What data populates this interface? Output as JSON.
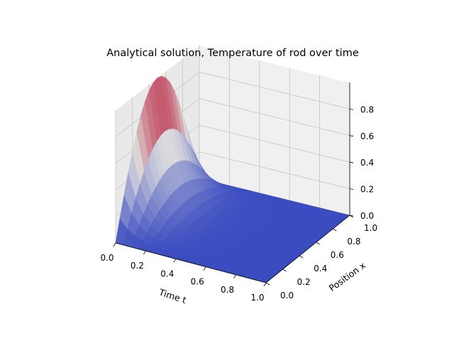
{
  "chart_data": {
    "type": "surface3d",
    "title": "Analytical solution, Temperature of rod over time",
    "xlabel": "Time t",
    "ylabel": "Position x",
    "zlabel": "",
    "xlim": [
      0,
      1
    ],
    "ylim": [
      0,
      1
    ],
    "zlim": [
      0,
      1
    ],
    "xticks": [
      "0.0",
      "0.2",
      "0.4",
      "0.6",
      "0.8",
      "1.0"
    ],
    "yticks": [
      "0.0",
      "0.2",
      "0.4",
      "0.6",
      "0.8",
      "1.0"
    ],
    "zticks": [
      "0.0",
      "0.2",
      "0.4",
      "0.6",
      "0.8"
    ],
    "function": "u(t, x) = exp(-pi^2 t) * sin(pi x)",
    "t_samples": [
      0.0,
      0.1,
      0.2,
      0.3,
      0.4,
      0.5,
      0.6,
      0.7,
      0.8,
      0.9,
      1.0
    ],
    "x_samples": [
      0.0,
      0.1,
      0.2,
      0.3,
      0.4,
      0.5,
      0.6,
      0.7,
      0.8,
      0.9,
      1.0
    ],
    "peak": {
      "t": 0.0,
      "x": 0.5,
      "value": 1.0
    },
    "colormap": "coolwarm",
    "colormap_low": "#3b4cc0",
    "colormap_mid": "#dddddd",
    "colormap_high": "#b40426",
    "grid": true,
    "pane_color": "#f2f2f2",
    "legend": "none"
  }
}
